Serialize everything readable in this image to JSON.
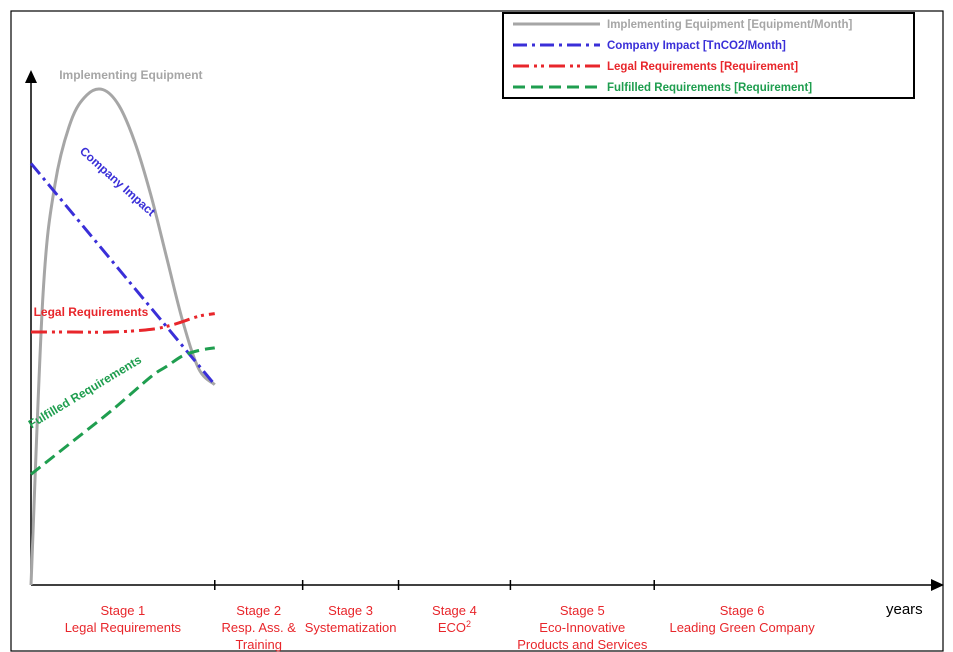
{
  "chart_data": {
    "type": "line",
    "title": "",
    "xlabel": "years",
    "ylabel": "",
    "x_range": [
      0,
      100
    ],
    "y_range": [
      0,
      100
    ],
    "grid": false,
    "legend_position": "top-right",
    "legend": [
      {
        "key": "equipment",
        "label": "Implementing Equipment  [Equipment/Month]",
        "color": "#a6a6a6",
        "dash": "solid"
      },
      {
        "key": "impact",
        "label": "Company Impact [TnCO2/Month]",
        "color": "#3a2fd8",
        "dash": "dashdot"
      },
      {
        "key": "legal",
        "label": "Legal Requirements [Requirement]",
        "color": "#e8262b",
        "dash": "dashdotdot"
      },
      {
        "key": "fulfilled",
        "label": "Fulfilled Requirements [Requirement]",
        "color": "#1f9e4f",
        "dash": "dashed"
      }
    ],
    "series": [
      {
        "key": "equipment",
        "name": "Implementing Equipment",
        "color": "#a6a6a6",
        "dash": "solid",
        "x": [
          0,
          1.5,
          3,
          5,
          7,
          9,
          11,
          13,
          15,
          17,
          19,
          21,
          23
        ],
        "y": [
          0,
          55,
          76,
          88,
          93,
          94,
          91,
          84,
          74,
          62,
          50,
          41,
          38
        ]
      },
      {
        "key": "impact",
        "name": "Company Impact",
        "color": "#3a2fd8",
        "dash": "dashdot",
        "x": [
          0,
          23
        ],
        "y": [
          80,
          38
        ]
      },
      {
        "key": "legal",
        "name": "Legal Requirements",
        "color": "#e8262b",
        "dash": "dashdotdot",
        "x": [
          0,
          5,
          10,
          15,
          18,
          21,
          23
        ],
        "y": [
          48,
          48,
          48,
          48.5,
          49.5,
          51,
          51.5
        ]
      },
      {
        "key": "fulfilled",
        "name": "Fulfilled Requirements",
        "color": "#1f9e4f",
        "dash": "dashed",
        "x": [
          0,
          5,
          10,
          15,
          17,
          19,
          21,
          23
        ],
        "y": [
          21,
          27,
          33,
          39.5,
          41.5,
          43.5,
          44.5,
          45
        ]
      }
    ],
    "annotations": [
      {
        "series": "equipment",
        "text": "Implementing Equipment",
        "x": 12.5,
        "y": 96,
        "angle": 0
      },
      {
        "series": "impact",
        "text": "Company Impact",
        "x": 10.5,
        "y": 76,
        "angle": 42
      },
      {
        "series": "legal",
        "text": "Legal Requirements",
        "x": 7.5,
        "y": 51,
        "angle": 0
      },
      {
        "series": "fulfilled",
        "text": "Fulfilled Requirements",
        "x": 7,
        "y": 36,
        "angle": -31
      }
    ],
    "stage_boundaries": [
      23,
      34,
      46,
      60,
      78
    ],
    "stages": [
      {
        "lines": [
          "Stage 1",
          "Legal Requirements"
        ],
        "sup": ""
      },
      {
        "lines": [
          "Stage 2",
          "Resp. Ass. &",
          "Training"
        ],
        "sup": ""
      },
      {
        "lines": [
          "Stage 3",
          "Systematization"
        ],
        "sup": ""
      },
      {
        "lines": [
          "Stage 4",
          "ECO"
        ],
        "sup": "2"
      },
      {
        "lines": [
          "Stage 5",
          "Eco-Innovative",
          "Products and Services"
        ],
        "sup": ""
      },
      {
        "lines": [
          "Stage 6",
          "Leading Green Company"
        ],
        "sup": ""
      }
    ]
  }
}
